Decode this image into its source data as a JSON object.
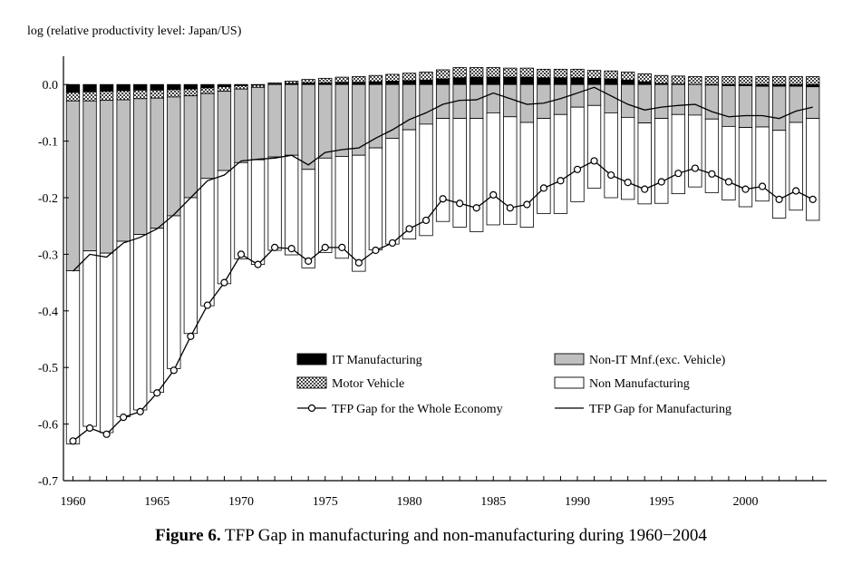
{
  "caption": {
    "prefix": "Figure 6.",
    "text": "TFP Gap in manufacturing and non-manufacturing during 1960−2004"
  },
  "chart_data": {
    "type": "bar",
    "stacked": true,
    "ylabel": "log (relative productivity level: Japan/US)",
    "ylim": [
      -0.7,
      0.05
    ],
    "yticks": [
      0.0,
      -0.1,
      -0.2,
      -0.3,
      -0.4,
      -0.5,
      -0.6,
      -0.7
    ],
    "ytick_labels": [
      "0.0",
      "-0.1",
      "-0.2",
      "-0.3",
      "-0.4",
      "-0.5",
      "-0.6",
      "-0.7"
    ],
    "xticks": [
      1960,
      1965,
      1970,
      1975,
      1980,
      1985,
      1990,
      1995,
      2000
    ],
    "xtick_labels": [
      "1960",
      "1965",
      "1970",
      "1975",
      "1980",
      "1985",
      "1990",
      "1995",
      "2000"
    ],
    "grid": false,
    "legend_position": "bottom-center",
    "x": [
      1960,
      1961,
      1962,
      1963,
      1964,
      1965,
      1966,
      1967,
      1968,
      1969,
      1970,
      1971,
      1972,
      1973,
      1974,
      1975,
      1976,
      1977,
      1978,
      1979,
      1980,
      1981,
      1982,
      1983,
      1984,
      1985,
      1986,
      1987,
      1988,
      1989,
      1990,
      1991,
      1992,
      1993,
      1994,
      1995,
      1996,
      1997,
      1998,
      1999,
      2000,
      2001,
      2002,
      2003,
      2004
    ],
    "series": [
      {
        "name": "IT Manufacturing",
        "color": "#000000",
        "pattern": "solid",
        "values": [
          -0.014,
          -0.013,
          -0.012,
          -0.011,
          -0.01,
          -0.01,
          -0.009,
          -0.008,
          -0.006,
          -0.004,
          -0.002,
          -0.001,
          0.001,
          0.002,
          0.003,
          0.003,
          0.004,
          0.004,
          0.005,
          0.006,
          0.007,
          0.008,
          0.01,
          0.012,
          0.013,
          0.013,
          0.013,
          0.013,
          0.012,
          0.012,
          0.012,
          0.011,
          0.01,
          0.008,
          0.005,
          0.002,
          0.001,
          0.0,
          -0.001,
          -0.002,
          -0.002,
          -0.003,
          -0.003,
          -0.003,
          -0.004
        ]
      },
      {
        "name": "Motor Vehicle",
        "color": "#9a9a9a",
        "pattern": "checker",
        "values": [
          -0.015,
          -0.016,
          -0.016,
          -0.016,
          -0.015,
          -0.014,
          -0.013,
          -0.012,
          -0.01,
          -0.008,
          -0.006,
          -0.004,
          0.002,
          0.004,
          0.006,
          0.008,
          0.009,
          0.01,
          0.011,
          0.012,
          0.013,
          0.014,
          0.016,
          0.018,
          0.017,
          0.017,
          0.016,
          0.016,
          0.015,
          0.015,
          0.015,
          0.014,
          0.014,
          0.014,
          0.014,
          0.014,
          0.014,
          0.014,
          0.014,
          0.014,
          0.014,
          0.014,
          0.014,
          0.014,
          0.014
        ]
      },
      {
        "name": "Non-IT Mnf.(exc. Vehicle)",
        "color": "#bfbfbf",
        "pattern": "solid",
        "values": [
          -0.3,
          -0.265,
          -0.27,
          -0.25,
          -0.24,
          -0.23,
          -0.21,
          -0.18,
          -0.15,
          -0.14,
          -0.13,
          -0.128,
          -0.128,
          -0.125,
          -0.15,
          -0.13,
          -0.127,
          -0.125,
          -0.112,
          -0.095,
          -0.08,
          -0.07,
          -0.06,
          -0.06,
          -0.06,
          -0.05,
          -0.057,
          -0.067,
          -0.06,
          -0.053,
          -0.04,
          -0.037,
          -0.05,
          -0.058,
          -0.068,
          -0.06,
          -0.053,
          -0.054,
          -0.06,
          -0.072,
          -0.074,
          -0.072,
          -0.078,
          -0.064,
          -0.056
        ]
      },
      {
        "name": "Non Manufacturing",
        "color": "#ffffff",
        "pattern": "solid",
        "values": [
          -0.306,
          -0.31,
          -0.317,
          -0.31,
          -0.31,
          -0.29,
          -0.27,
          -0.24,
          -0.225,
          -0.2,
          -0.17,
          -0.185,
          -0.165,
          -0.176,
          -0.174,
          -0.167,
          -0.18,
          -0.205,
          -0.18,
          -0.187,
          -0.193,
          -0.197,
          -0.182,
          -0.192,
          -0.2,
          -0.198,
          -0.19,
          -0.185,
          -0.168,
          -0.175,
          -0.167,
          -0.146,
          -0.15,
          -0.145,
          -0.143,
          -0.15,
          -0.14,
          -0.127,
          -0.13,
          -0.13,
          -0.14,
          -0.131,
          -0.155,
          -0.155,
          -0.18
        ]
      },
      {
        "name": "TFP Gap for the Whole Economy",
        "type": "line",
        "marker": "circle",
        "color": "#000000",
        "values": [
          -0.63,
          -0.607,
          -0.618,
          -0.588,
          -0.578,
          -0.545,
          -0.505,
          -0.445,
          -0.39,
          -0.35,
          -0.3,
          -0.318,
          -0.288,
          -0.29,
          -0.312,
          -0.288,
          -0.288,
          -0.315,
          -0.293,
          -0.28,
          -0.255,
          -0.24,
          -0.202,
          -0.21,
          -0.218,
          -0.195,
          -0.218,
          -0.212,
          -0.183,
          -0.17,
          -0.15,
          -0.135,
          -0.16,
          -0.173,
          -0.185,
          -0.172,
          -0.157,
          -0.148,
          -0.158,
          -0.172,
          -0.185,
          -0.18,
          -0.203,
          -0.188,
          -0.203
        ]
      },
      {
        "name": "TFP Gap for Manufacturing",
        "type": "line",
        "marker": "none",
        "color": "#000000",
        "values": [
          -0.33,
          -0.3,
          -0.305,
          -0.28,
          -0.27,
          -0.255,
          -0.23,
          -0.2,
          -0.17,
          -0.16,
          -0.135,
          -0.132,
          -0.13,
          -0.125,
          -0.142,
          -0.12,
          -0.115,
          -0.112,
          -0.095,
          -0.08,
          -0.062,
          -0.05,
          -0.035,
          -0.028,
          -0.027,
          -0.015,
          -0.025,
          -0.035,
          -0.033,
          -0.025,
          -0.015,
          -0.005,
          -0.02,
          -0.035,
          -0.045,
          -0.04,
          -0.037,
          -0.035,
          -0.048,
          -0.057,
          -0.055,
          -0.055,
          -0.06,
          -0.047,
          -0.04
        ]
      }
    ]
  }
}
